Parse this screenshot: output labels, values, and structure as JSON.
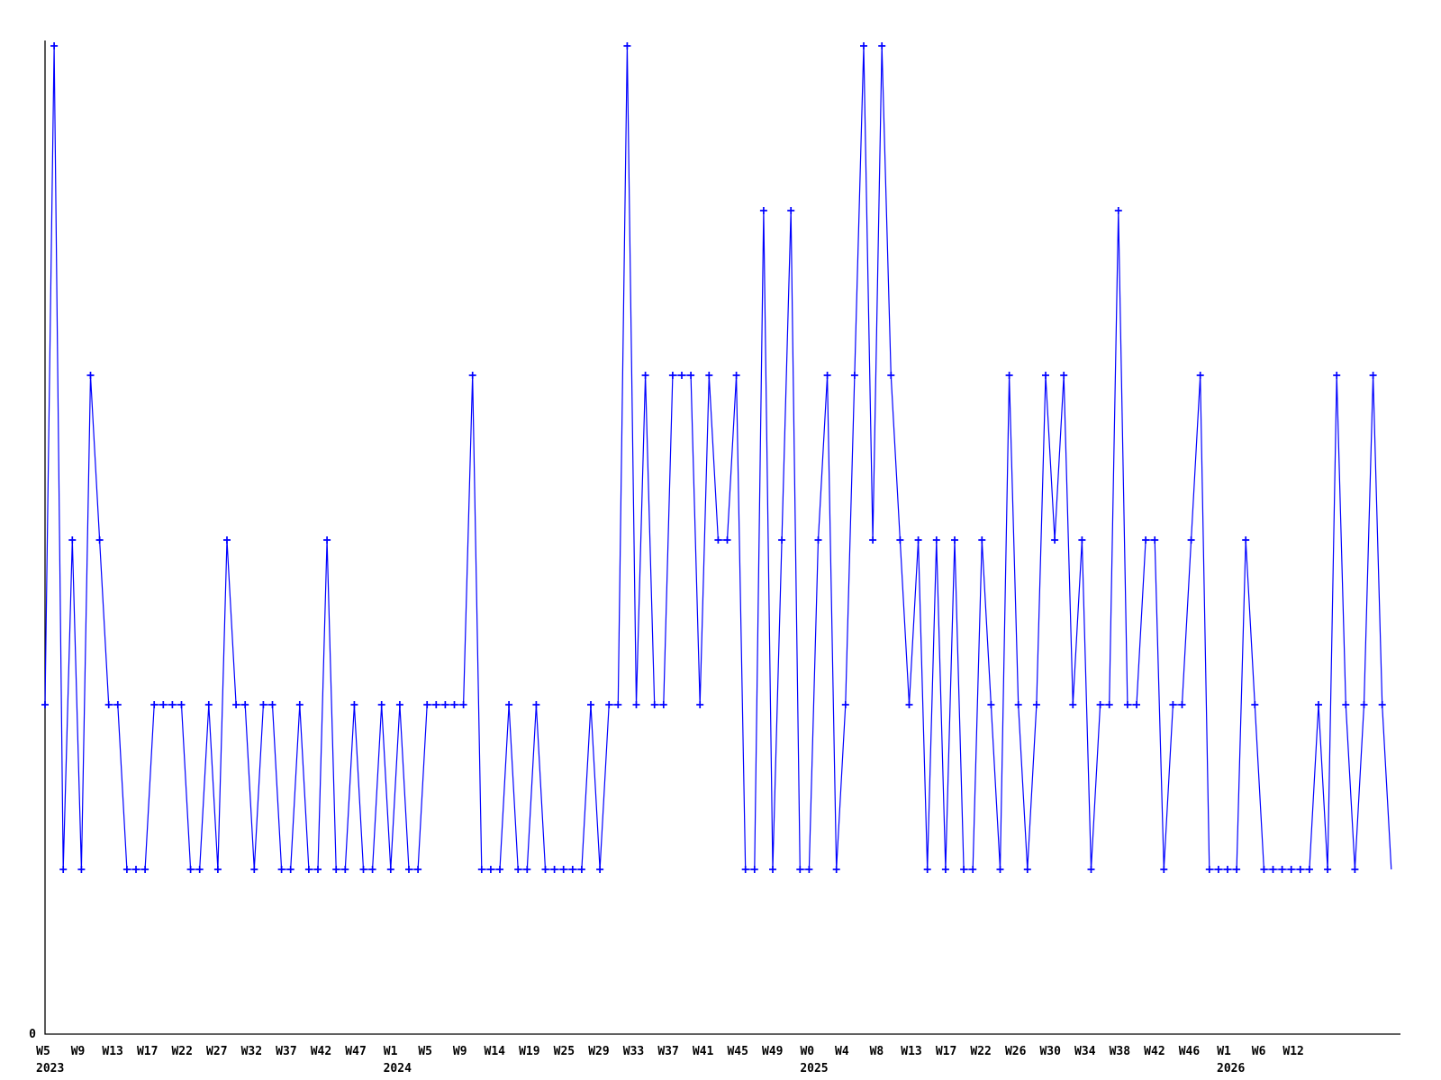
{
  "chart_data": {
    "type": "line",
    "title": "",
    "xlabel": "",
    "ylabel": "",
    "grid": false,
    "legend": false,
    "background_color": "#ffffff",
    "axis_color": "#000000",
    "y_axis": {
      "tick_labels": [
        "0"
      ],
      "range": [
        0,
        6
      ]
    },
    "x_axis": {
      "unit": "iso-week",
      "tick_labels": [
        "W5",
        "W9",
        "W13",
        "W17",
        "W22",
        "W27",
        "W32",
        "W37",
        "W42",
        "W47",
        "W1",
        "W5",
        "W9",
        "W14",
        "W19",
        "W25",
        "W29",
        "W33",
        "W37",
        "W41",
        "W45",
        "W49",
        "W0",
        "W4",
        "W8",
        "W13",
        "W17",
        "W22",
        "W26",
        "W30",
        "W34",
        "W38",
        "W42",
        "W46",
        "W1",
        "W6",
        "W12"
      ],
      "year_labels": [
        {
          "text": "2023",
          "tick_index": 0
        },
        {
          "text": "2024",
          "tick_index": 10
        },
        {
          "text": "2025",
          "tick_index": 22
        },
        {
          "text": "2026",
          "tick_index": 34
        }
      ]
    },
    "series": [
      {
        "name": "weekly-count",
        "color": "#0000ff",
        "marker": "plus",
        "start_week": "W5 2023",
        "values": [
          2,
          6,
          1,
          3,
          1,
          4,
          3,
          2,
          2,
          1,
          1,
          1,
          2,
          2,
          2,
          2,
          1,
          1,
          2,
          1,
          3,
          2,
          2,
          1,
          2,
          2,
          1,
          1,
          2,
          1,
          1,
          3,
          1,
          1,
          2,
          1,
          1,
          2,
          1,
          2,
          1,
          1,
          2,
          2,
          2,
          2,
          2,
          4,
          1,
          1,
          1,
          2,
          1,
          1,
          2,
          1,
          1,
          1,
          1,
          1,
          2,
          1,
          2,
          2,
          6,
          2,
          4,
          2,
          2,
          4,
          4,
          4,
          2,
          4,
          3,
          3,
          4,
          1,
          1,
          5,
          1,
          3,
          5,
          1,
          1,
          3,
          4,
          1,
          2,
          4,
          6,
          3,
          6,
          4,
          3,
          2,
          3,
          1,
          3,
          1,
          3,
          1,
          1,
          3,
          2,
          1,
          4,
          2,
          1,
          2,
          4,
          3,
          4,
          2,
          3,
          1,
          2,
          2,
          5,
          2,
          2,
          3,
          3,
          1,
          2,
          2,
          3,
          4,
          1,
          1,
          1,
          1,
          3,
          2,
          1,
          1,
          1,
          1,
          1,
          1,
          2,
          1,
          4,
          2,
          1,
          2,
          4,
          2,
          1
        ]
      }
    ]
  }
}
